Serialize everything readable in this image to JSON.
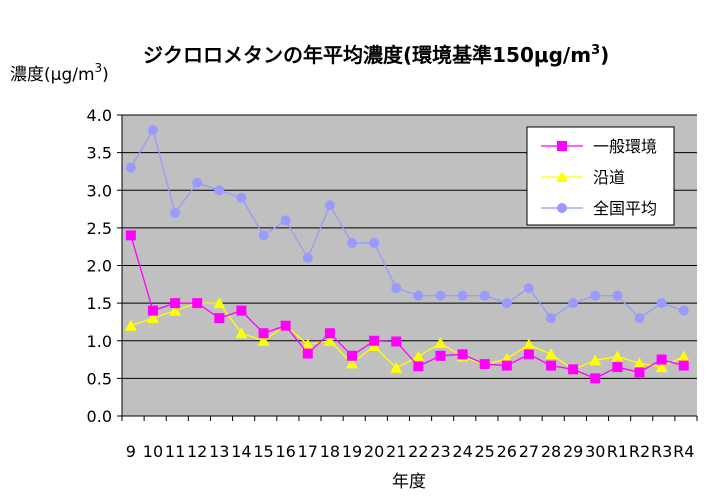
{
  "chart_data": {
    "type": "line",
    "title": "ジクロロメタンの年平均濃度(環境基準150μg/m",
    "title_sup": "3",
    "title_end": ")",
    "ylabel": "濃度(μg/m",
    "ylabel_sup": "3",
    "ylabel_end": ")",
    "xlabel": "年度",
    "ylim": [
      0,
      4
    ],
    "yticks": [
      "0.0",
      "0.5",
      "1.0",
      "1.5",
      "2.0",
      "2.5",
      "3.0",
      "3.5",
      "4.0"
    ],
    "categories": [
      "9",
      "10",
      "11",
      "12",
      "13",
      "14",
      "15",
      "16",
      "17",
      "18",
      "19",
      "20",
      "21",
      "22",
      "23",
      "24",
      "25",
      "26",
      "27",
      "28",
      "29",
      "30",
      "R1",
      "R2",
      "R3",
      "R4"
    ],
    "legend_position": "top-right",
    "grid": true,
    "plot_background": "#c0c0c0",
    "series": [
      {
        "name": "一般環境",
        "color": "#ff00ff",
        "marker": "square",
        "values": [
          2.4,
          1.4,
          1.5,
          1.5,
          1.3,
          1.4,
          1.1,
          1.2,
          0.83,
          1.1,
          0.8,
          1.0,
          0.99,
          0.66,
          0.8,
          0.82,
          0.69,
          0.67,
          0.82,
          0.67,
          0.62,
          0.5,
          0.65,
          0.58,
          0.75,
          0.67
        ]
      },
      {
        "name": "沿道",
        "color": "#ffff00",
        "marker": "triangle",
        "values": [
          1.2,
          1.3,
          1.4,
          1.5,
          1.5,
          1.1,
          1.0,
          1.2,
          0.95,
          1.0,
          0.7,
          0.93,
          0.64,
          0.79,
          0.97,
          0.79,
          0.68,
          0.76,
          0.95,
          0.82,
          0.62,
          0.74,
          0.79,
          0.7,
          0.65,
          0.79
        ]
      },
      {
        "name": "全国平均",
        "color": "#9999ff",
        "marker": "circle",
        "values": [
          3.3,
          3.8,
          2.7,
          3.1,
          3.0,
          2.9,
          2.4,
          2.6,
          2.1,
          2.8,
          2.3,
          2.3,
          1.7,
          1.6,
          1.6,
          1.6,
          1.6,
          1.5,
          1.7,
          1.3,
          1.5,
          1.6,
          1.6,
          1.3,
          1.5,
          1.4
        ]
      }
    ]
  }
}
